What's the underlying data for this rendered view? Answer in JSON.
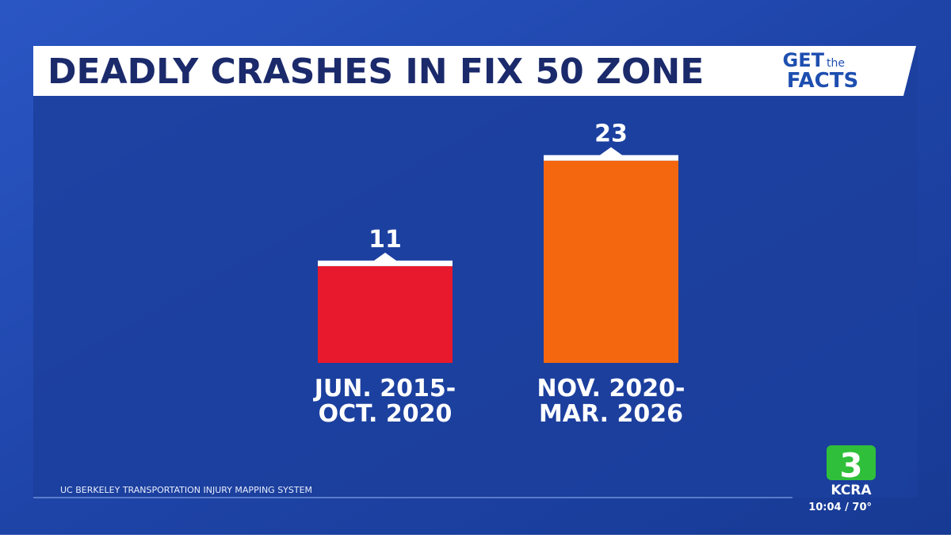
{
  "chart_data": {
    "type": "bar",
    "title": "DEADLY CRASHES IN FIX 50 ZONE",
    "logo": [
      "GET",
      "the",
      "FACTS"
    ],
    "categories": [
      [
        "JUN. 2015-",
        "OCT. 2020"
      ],
      [
        "NOV. 2020-",
        "MAR. 2026"
      ]
    ],
    "values": [
      11,
      23
    ],
    "colors": [
      "#e8192c",
      "#f4670f"
    ],
    "source": "UC BERKELEY TRANSPORTATION INJURY MAPPING SYSTEM",
    "station": {
      "channel": "3",
      "name": "KCRA",
      "time": "10:04 / 70°"
    }
  }
}
